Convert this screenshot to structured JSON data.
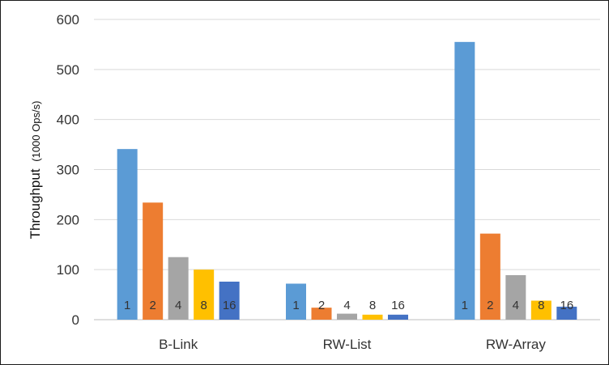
{
  "chart_data": {
    "type": "bar",
    "categories": [
      "B-Link",
      "RW-List",
      "RW-Array"
    ],
    "series": [
      {
        "name": "1",
        "color": "#5B9BD5",
        "values": [
          341,
          72,
          555
        ]
      },
      {
        "name": "2",
        "color": "#ED7D31",
        "values": [
          234,
          24,
          172
        ]
      },
      {
        "name": "4",
        "color": "#A5A5A5",
        "values": [
          125,
          12,
          89
        ]
      },
      {
        "name": "8",
        "color": "#FFC000",
        "values": [
          100,
          10,
          38
        ]
      },
      {
        "name": "16",
        "color": "#4472C4",
        "values": [
          76,
          10,
          26
        ]
      }
    ],
    "ylabel_main": "Throughput",
    "ylabel_unit": "(1000  Ops/s)",
    "ylim": [
      0,
      600
    ],
    "yticks": [
      "0",
      "100",
      "200",
      "300",
      "400",
      "500",
      "600"
    ],
    "grid": true,
    "legend": "none",
    "data_labels": "series name inside each bar"
  }
}
